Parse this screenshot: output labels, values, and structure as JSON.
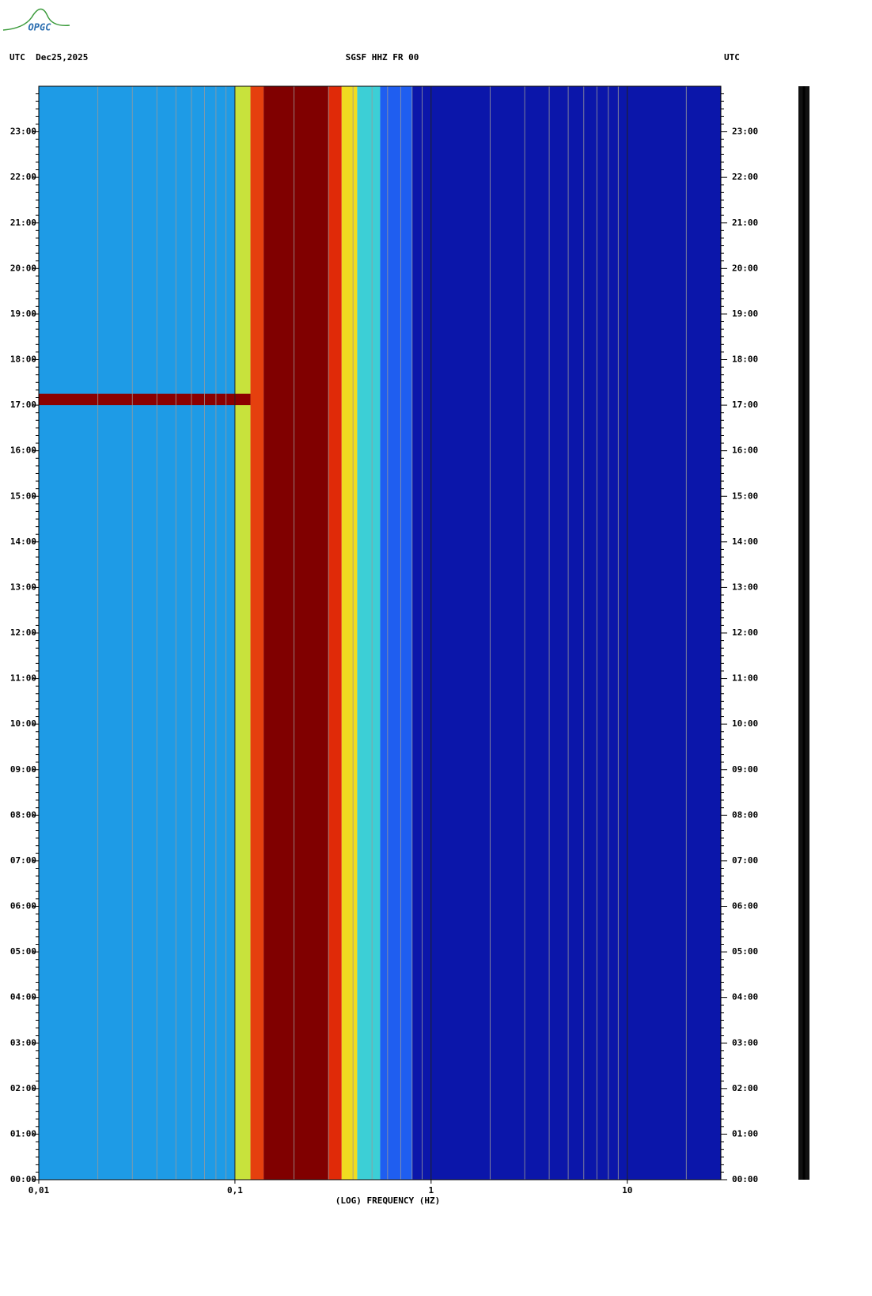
{
  "logo": "OPGC",
  "chart_data": {
    "type": "spectrogram",
    "title_left": "UTC  Dec25,2025",
    "title": "SGSF HHZ FR 00",
    "title_right": "UTC",
    "xlabel": "(LOG) FREQUENCY (HZ)",
    "xscale": "log",
    "xlim": [
      0.01,
      30
    ],
    "xticks": [
      {
        "value": 0.01,
        "label": "0,01"
      },
      {
        "value": 0.1,
        "label": "0,1"
      },
      1,
      10
    ],
    "ylim": [
      0,
      24
    ],
    "yticks": [
      {
        "value": 0,
        "label": "00:00"
      },
      {
        "value": 1,
        "label": "01:00"
      },
      {
        "value": 2,
        "label": "02:00"
      },
      {
        "value": 3,
        "label": "03:00"
      },
      {
        "value": 4,
        "label": "04:00"
      },
      {
        "value": 5,
        "label": "05:00"
      },
      {
        "value": 6,
        "label": "06:00"
      },
      {
        "value": 7,
        "label": "07:00"
      },
      {
        "value": 8,
        "label": "08:00"
      },
      {
        "value": 9,
        "label": "09:00"
      },
      {
        "value": 10,
        "label": "10:00"
      },
      {
        "value": 11,
        "label": "11:00"
      },
      {
        "value": 12,
        "label": "12:00"
      },
      {
        "value": 13,
        "label": "13:00"
      },
      {
        "value": 14,
        "label": "14:00"
      },
      {
        "value": 15,
        "label": "15:00"
      },
      {
        "value": 16,
        "label": "16:00"
      },
      {
        "value": 17,
        "label": "17:00"
      },
      {
        "value": 18,
        "label": "18:00"
      },
      {
        "value": 19,
        "label": "19:00"
      },
      {
        "value": 20,
        "label": "20:00"
      },
      {
        "value": 21,
        "label": "21:00"
      },
      {
        "value": 22,
        "label": "22:00"
      },
      {
        "value": 23,
        "label": "23:00"
      }
    ],
    "grid": true,
    "bands": [
      {
        "from": 0.01,
        "to": 0.1,
        "color": "#1e9be6"
      },
      {
        "from": 0.1,
        "to": 0.12,
        "color": "#c8e23c"
      },
      {
        "from": 0.12,
        "to": 0.14,
        "color": "#e5400e"
      },
      {
        "from": 0.14,
        "to": 0.3,
        "color": "#800000"
      },
      {
        "from": 0.3,
        "to": 0.35,
        "color": "#e02a08"
      },
      {
        "from": 0.35,
        "to": 0.42,
        "color": "#f0dc20"
      },
      {
        "from": 0.42,
        "to": 0.55,
        "color": "#3ccfd6"
      },
      {
        "from": 0.55,
        "to": 0.8,
        "color": "#1f5ef0"
      },
      {
        "from": 0.8,
        "to": 30,
        "color": "#0b16aa"
      }
    ],
    "events": [
      {
        "from": 0.01,
        "to": 0.12,
        "start": 17.0,
        "end": 17.25,
        "color": "#8b0000"
      }
    ]
  }
}
